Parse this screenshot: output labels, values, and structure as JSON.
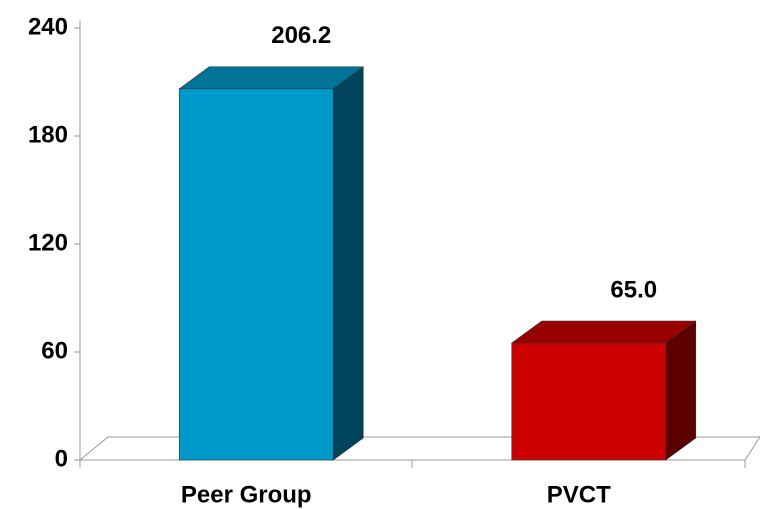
{
  "chart_data": {
    "type": "bar3d",
    "categories": [
      "Peer Group",
      "PVCT"
    ],
    "values": [
      206.2,
      65.0
    ],
    "value_labels": [
      "206.2",
      "65.0"
    ],
    "colors": [
      "#0099cc",
      "#cc0000"
    ],
    "ylim": [
      0,
      240
    ],
    "yticks": [
      0,
      60,
      120,
      180,
      240
    ]
  }
}
